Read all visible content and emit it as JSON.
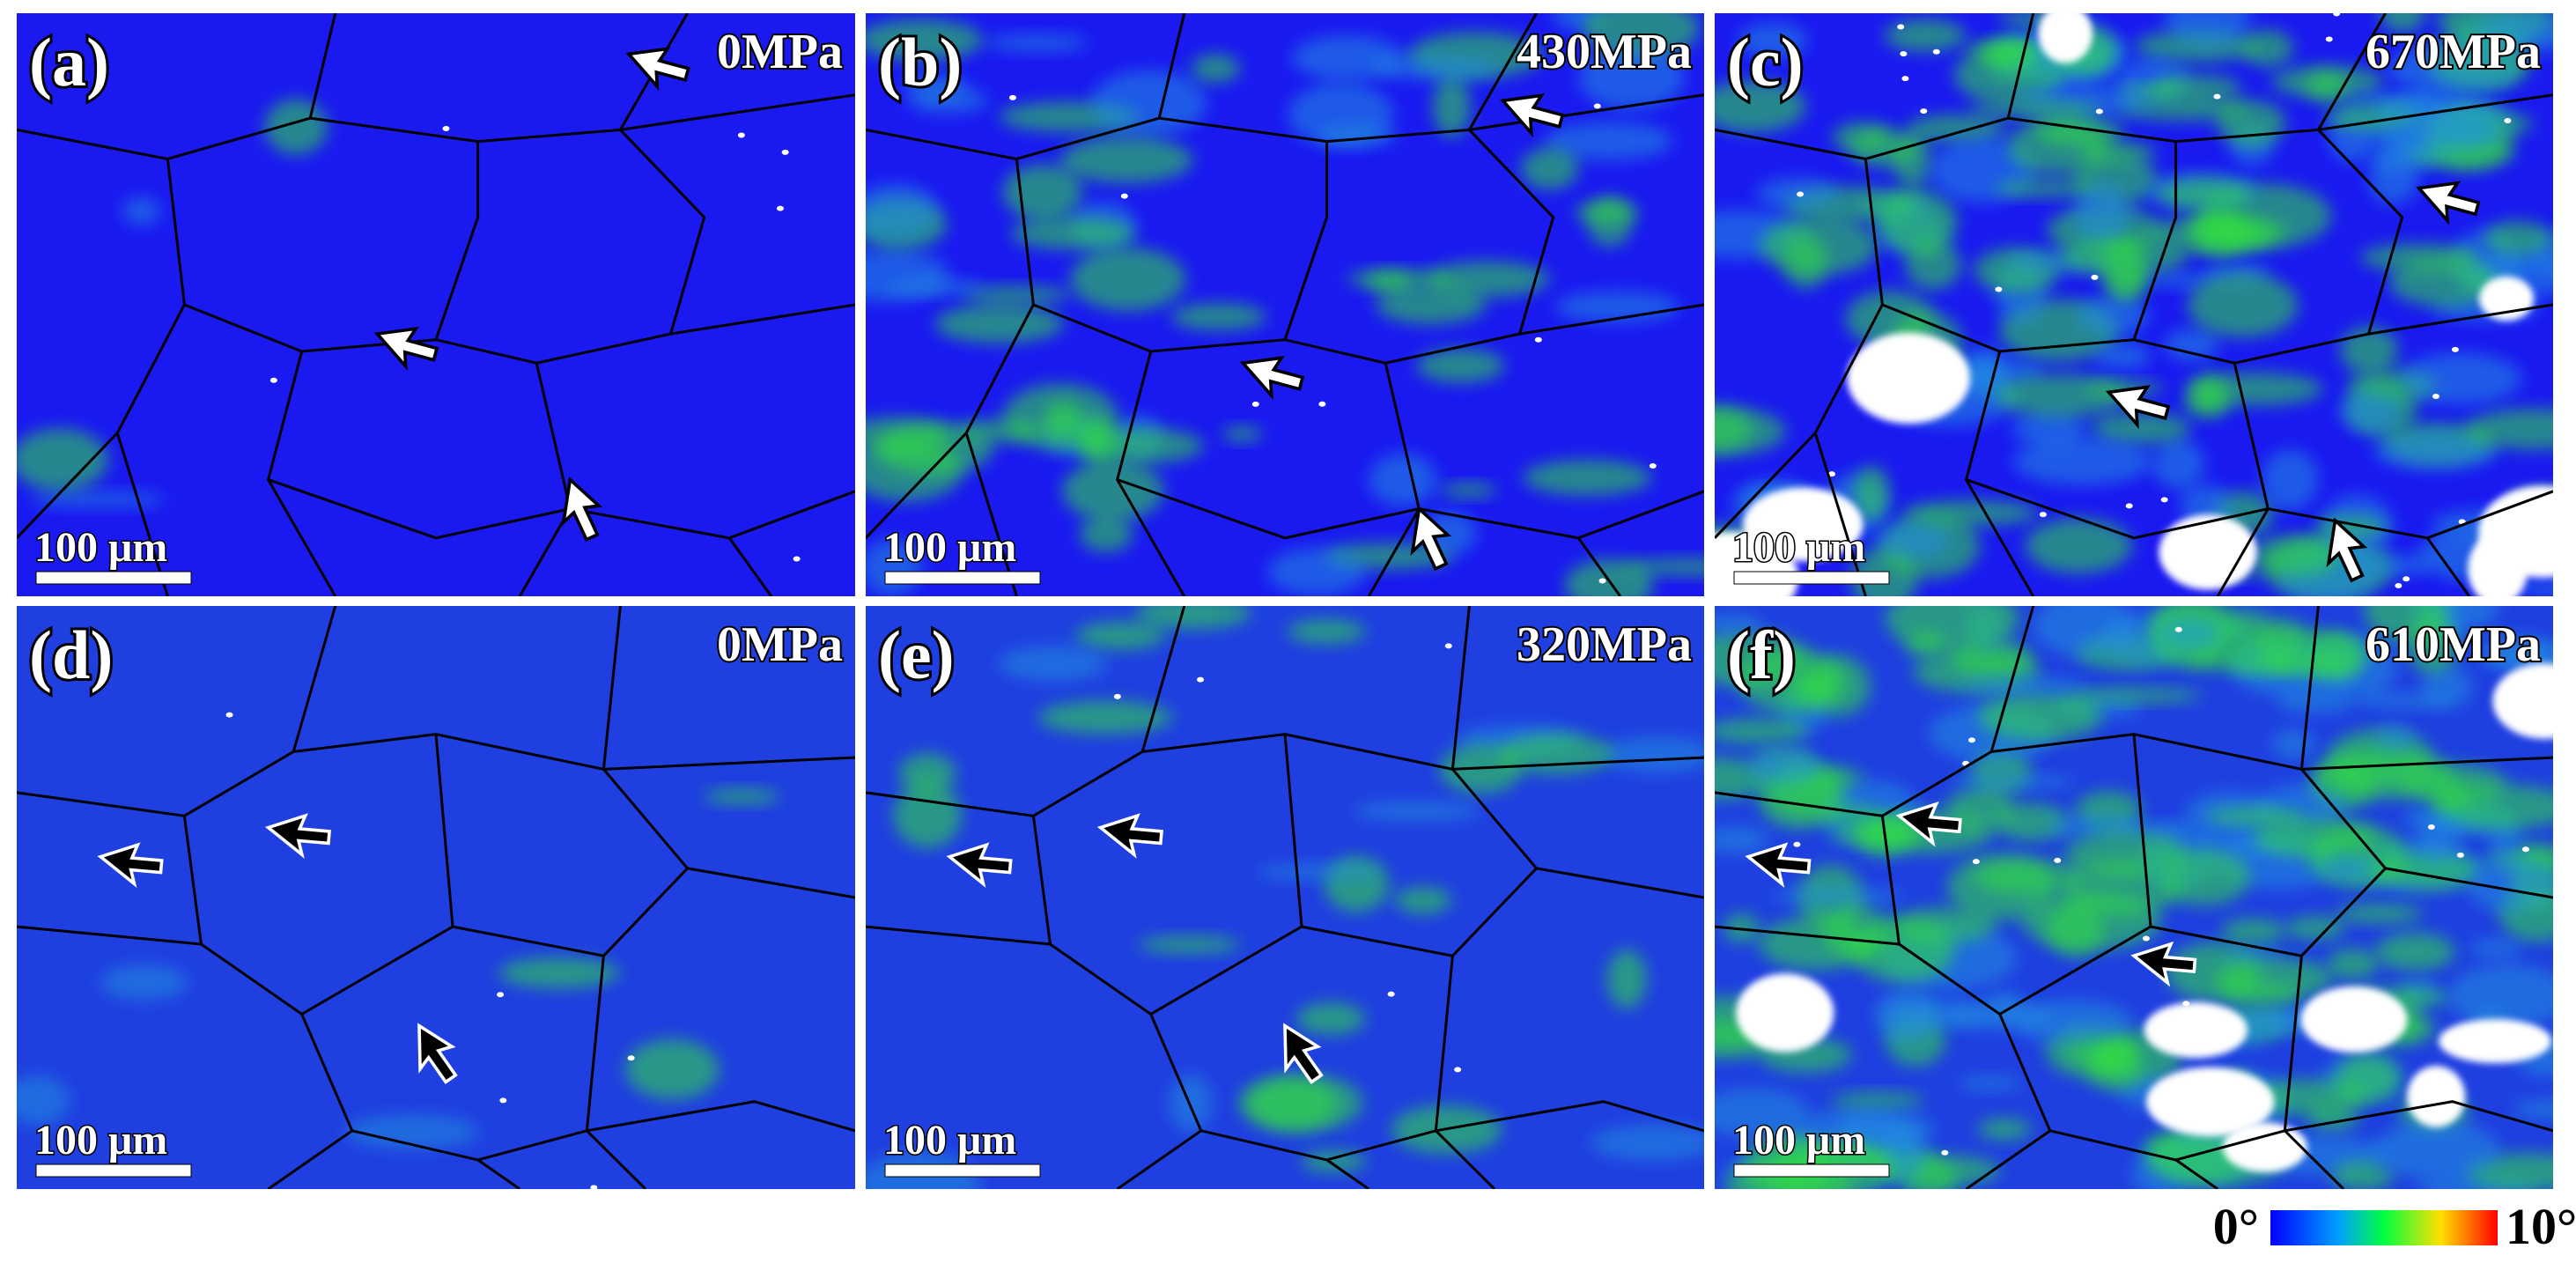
{
  "panels": [
    {
      "label": "(a)",
      "stress": "0MPa",
      "scale_bar": "100 μm"
    },
    {
      "label": "(b)",
      "stress": "430MPa",
      "scale_bar": "100 μm"
    },
    {
      "label": "(c)",
      "stress": "670MPa",
      "scale_bar": "100 μm"
    },
    {
      "label": "(d)",
      "stress": "0MPa",
      "scale_bar": "100 μm"
    },
    {
      "label": "(e)",
      "stress": "320MPa",
      "scale_bar": "100 μm"
    },
    {
      "label": "(f)",
      "stress": "610MPa",
      "scale_bar": "100 μm"
    }
  ],
  "colorbar": {
    "min_label": "0°",
    "max_label": "10°"
  }
}
